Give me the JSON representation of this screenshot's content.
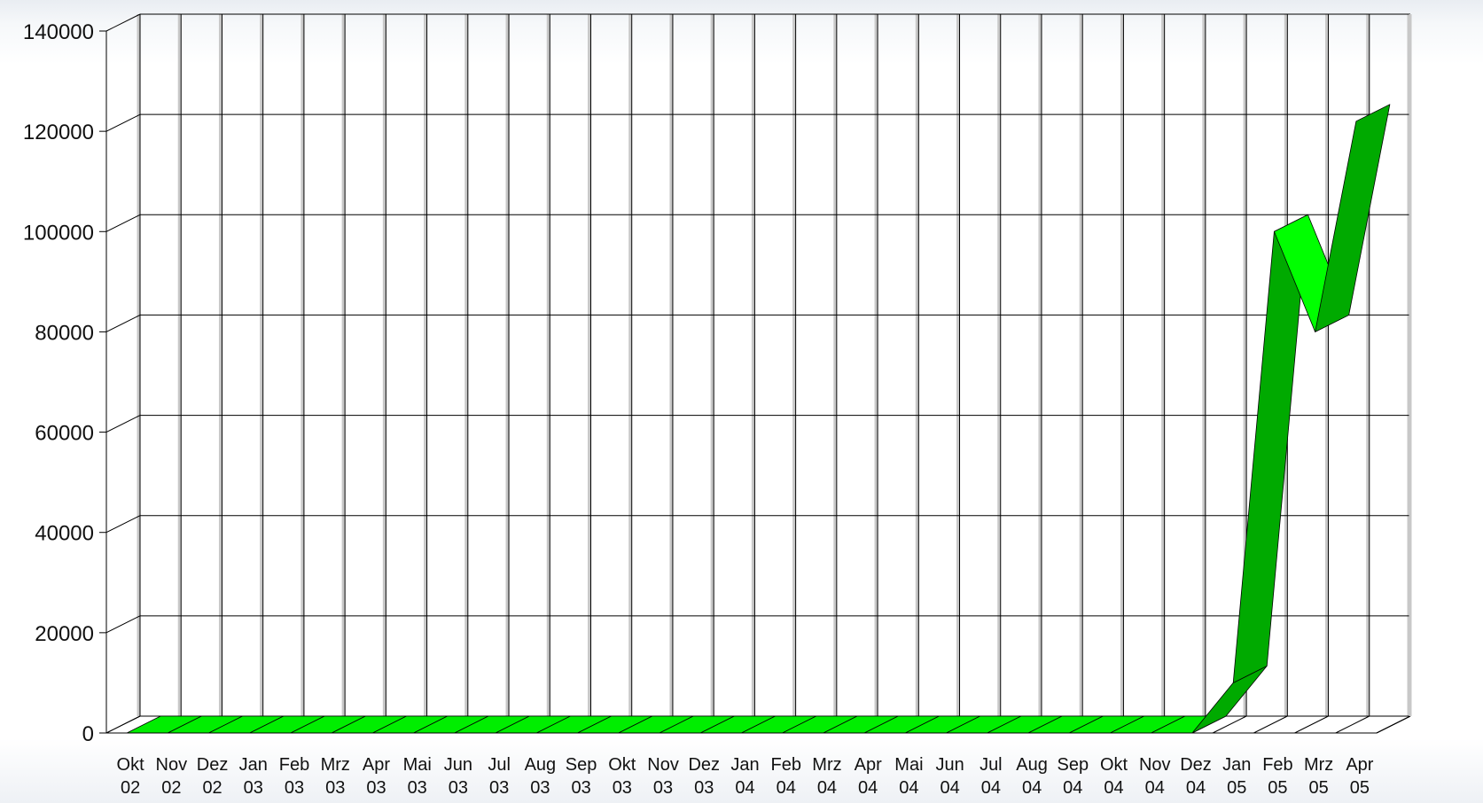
{
  "chart_data": {
    "type": "area",
    "title": "",
    "xlabel": "",
    "ylabel": "",
    "ylim": [
      0,
      140000
    ],
    "y_ticks": [
      "0",
      "20000",
      "40000",
      "60000",
      "80000",
      "100000",
      "120000",
      "140000"
    ],
    "categories": [
      [
        "Okt",
        "02"
      ],
      [
        "Nov",
        "02"
      ],
      [
        "Dez",
        "02"
      ],
      [
        "Jan",
        "03"
      ],
      [
        "Feb",
        "03"
      ],
      [
        "Mrz",
        "03"
      ],
      [
        "Apr",
        "03"
      ],
      [
        "Mai",
        "03"
      ],
      [
        "Jun",
        "03"
      ],
      [
        "Jul",
        "03"
      ],
      [
        "Aug",
        "03"
      ],
      [
        "Sep",
        "03"
      ],
      [
        "Okt",
        "03"
      ],
      [
        "Nov",
        "03"
      ],
      [
        "Dez",
        "03"
      ],
      [
        "Jan",
        "04"
      ],
      [
        "Feb",
        "04"
      ],
      [
        "Mrz",
        "04"
      ],
      [
        "Apr",
        "04"
      ],
      [
        "Mai",
        "04"
      ],
      [
        "Jun",
        "04"
      ],
      [
        "Jul",
        "04"
      ],
      [
        "Aug",
        "04"
      ],
      [
        "Sep",
        "04"
      ],
      [
        "Okt",
        "04"
      ],
      [
        "Nov",
        "04"
      ],
      [
        "Dez",
        "04"
      ],
      [
        "Jan",
        "05"
      ],
      [
        "Feb",
        "05"
      ],
      [
        "Mrz",
        "05"
      ],
      [
        "Apr",
        "05"
      ]
    ],
    "series": [
      {
        "values": [
          0,
          0,
          0,
          0,
          0,
          0,
          0,
          0,
          0,
          0,
          0,
          0,
          0,
          0,
          0,
          0,
          0,
          0,
          0,
          0,
          0,
          0,
          0,
          0,
          0,
          0,
          0,
          10000,
          100000,
          80000,
          122000
        ]
      }
    ],
    "grid": true,
    "legend": "none",
    "colors": {
      "ribbon_rising": "#00aa00",
      "ribbon_falling": "#00ff00",
      "ribbon_top": "#00ee00",
      "wall_line": "#000000",
      "wall_edge": "#c8c8c8"
    }
  }
}
